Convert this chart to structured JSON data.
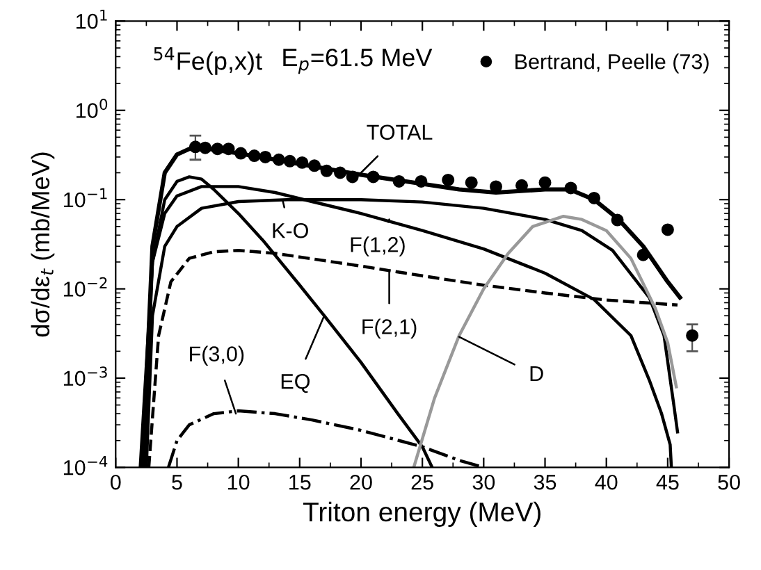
{
  "chart_data": {
    "type": "line",
    "xlabel": "Triton energy (MeV)",
    "ylabel": "dσ/dε$_{t}$ (mb/MeV)",
    "xlim": [
      0,
      50
    ],
    "xticks": [
      0,
      5,
      10,
      15,
      20,
      25,
      30,
      35,
      40,
      45,
      50
    ],
    "ylim": [
      0.0001,
      10
    ],
    "log": true,
    "yticks": [
      {
        "value": 0.0001,
        "label": "10$^{−4}$"
      },
      {
        "value": 0.001,
        "label": "10$^{−3}$"
      },
      {
        "value": 0.01,
        "label": "10$^{−2}$"
      },
      {
        "value": 0.1,
        "label": "10$^{−1}$"
      },
      {
        "value": 1,
        "label": "10$^{0}$"
      },
      {
        "value": 10,
        "label": "10$^{1}$"
      }
    ],
    "grid": false,
    "legend": "top right",
    "series": [
      {
        "name": "Bertrand, Peelle (73)",
        "type": "scatter",
        "marker": "circle",
        "color": "#000000",
        "x": [
          6.5,
          7.3,
          8.3,
          9.2,
          10.2,
          11.3,
          12.2,
          13.3,
          14.2,
          15.2,
          16.2,
          17.2,
          18.3,
          19.3,
          21,
          23.1,
          24.9,
          27.1,
          29,
          31,
          33.1,
          35,
          37.1,
          39,
          40.9,
          43,
          45,
          47
        ],
        "values": [
          0.39,
          0.38,
          0.37,
          0.37,
          0.33,
          0.31,
          0.3,
          0.28,
          0.27,
          0.26,
          0.24,
          0.21,
          0.2,
          0.18,
          0.18,
          0.16,
          0.16,
          0.166,
          0.155,
          0.14,
          0.144,
          0.155,
          0.135,
          0.104,
          0.059,
          0.024,
          0.046,
          0.003
        ],
        "errors": [
          [
            0.28,
            0.52
          ],
          null,
          null,
          null,
          null,
          null,
          null,
          null,
          null,
          null,
          null,
          null,
          null,
          null,
          null,
          null,
          null,
          null,
          null,
          null,
          null,
          null,
          null,
          null,
          null,
          null,
          null,
          [
            0.002,
            0.004
          ]
        ]
      },
      {
        "line_style": "solid",
        "color": "#000000",
        "x": [
          2.2,
          3,
          4,
          5,
          6,
          7,
          10,
          15,
          20,
          25,
          28,
          31,
          35,
          37,
          39,
          41,
          43,
          45,
          46
        ],
        "values": [
          0.0001,
          0.03,
          0.2,
          0.32,
          0.37,
          0.38,
          0.33,
          0.25,
          0.19,
          0.15,
          0.13,
          0.12,
          0.13,
          0.13,
          0.1,
          0.06,
          0.03,
          0.012,
          0.008
        ]
      },
      {
        "line_style": "solid",
        "color": "#000000",
        "x": [
          2,
          3,
          4,
          5,
          6,
          7,
          8,
          10,
          12,
          15,
          17,
          20,
          23,
          25,
          25.8
        ],
        "values": [
          0.0001,
          0.02,
          0.1,
          0.16,
          0.18,
          0.17,
          0.13,
          0.07,
          0.035,
          0.011,
          0.005,
          0.0015,
          0.0004,
          0.00017,
          0.0001
        ]
      },
      {
        "line_style": "solid",
        "color": "#000000",
        "x": [
          2.3,
          3,
          4,
          5,
          7,
          10,
          13,
          16,
          20,
          25,
          30,
          35,
          39,
          42,
          43.5,
          44.5,
          45.2,
          45.3
        ],
        "values": [
          0.0001,
          0.02,
          0.07,
          0.11,
          0.14,
          0.14,
          0.12,
          0.095,
          0.07,
          0.045,
          0.028,
          0.015,
          0.0076,
          0.003,
          0.00095,
          0.0004,
          0.00018,
          0.0001
        ]
      },
      {
        "line_style": "solid",
        "color": "#000000",
        "x": [
          2.5,
          3,
          4,
          5,
          7,
          10,
          14,
          20,
          25,
          30,
          35,
          38,
          40.5,
          43.5,
          44.7,
          45.5,
          45.8
        ],
        "values": [
          0.0001,
          0.005,
          0.03,
          0.05,
          0.08,
          0.095,
          0.1,
          0.1,
          0.094,
          0.08,
          0.06,
          0.045,
          0.027,
          0.008,
          0.003,
          0.0005,
          0.00025
        ]
      },
      {
        "line_style": "dashed",
        "color": "#000000",
        "x": [
          2.7,
          3.5,
          4.5,
          6,
          8,
          10,
          13,
          20,
          25,
          30,
          35,
          40,
          45.8
        ],
        "values": [
          0.0001,
          0.003,
          0.012,
          0.022,
          0.026,
          0.027,
          0.025,
          0.018,
          0.014,
          0.011,
          0.009,
          0.0075,
          0.0066
        ]
      },
      {
        "line_style": "dashdot",
        "color": "#000000",
        "x": [
          4.3,
          5,
          6,
          8,
          10,
          13,
          16,
          20,
          25,
          28,
          30
        ],
        "values": [
          0.0001,
          0.0002,
          0.0003,
          0.0004,
          0.00043,
          0.0004,
          0.00034,
          0.00026,
          0.00017,
          0.00012,
          0.0001
        ]
      },
      {
        "line_style": "solid",
        "color": "#999999",
        "x": [
          24.3,
          26,
          28,
          30,
          32,
          34,
          36.5,
          38,
          40,
          42,
          44,
          45,
          45.7
        ],
        "values": [
          0.0001,
          0.0006,
          0.003,
          0.01,
          0.025,
          0.05,
          0.065,
          0.06,
          0.045,
          0.022,
          0.006,
          0.0025,
          0.0008
        ]
      }
    ],
    "annotations": [
      "$^{54}$Fe(p,x)t",
      "E$_{p}$=61.5 MeV",
      {
        "text": "TOTAL",
        "x": 20,
        "y": 0.2
      },
      {
        "text": "K-O",
        "x": 13.6,
        "y": 0.1
      },
      {
        "text": "F(1,2)",
        "x": 22.3,
        "y": 0.06
      },
      {
        "text": "F(2,1)",
        "x": 22.3,
        "y": 0.016
      },
      {
        "text": "EQ",
        "x": 17,
        "y": 0.005
      },
      {
        "text": "F(3,0)",
        "x": 9.8,
        "y": 0.0004
      },
      {
        "text": "D",
        "x": 28,
        "y": 0.0029
      }
    ]
  }
}
